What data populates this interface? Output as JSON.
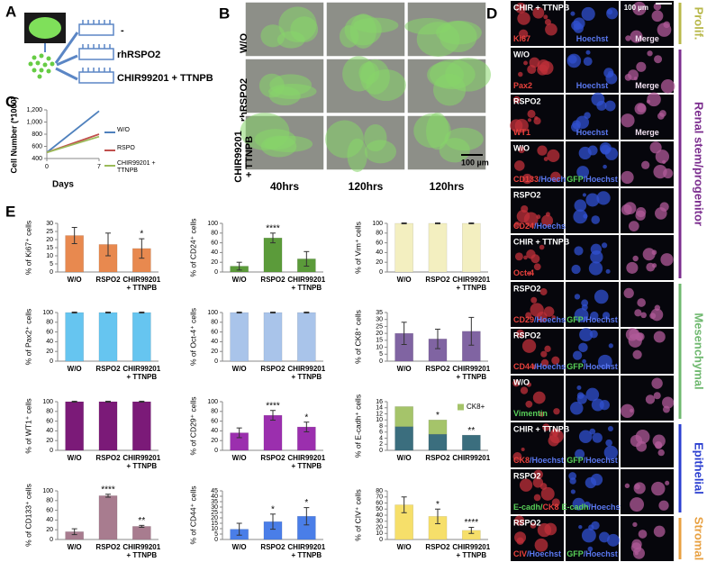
{
  "panels": {
    "a": "A",
    "b": "B",
    "c": "C",
    "d": "D",
    "e": "E"
  },
  "schematic": {
    "conditions": [
      "-",
      "rhRSPO2",
      "CHIR99201 + TTNPB"
    ]
  },
  "micrographs_b": {
    "rows": [
      "W/O",
      "rhRSPO2",
      "CHIR99201 + TTNPB"
    ],
    "columns": [
      "40hrs",
      "120hrs",
      "120hrs"
    ],
    "scale_bar": "100 µm"
  },
  "micrographs_d": {
    "scale_bar": "100 µm",
    "groups": [
      {
        "name": "Prolif.",
        "color": "#b8b84a",
        "rows": [
          {
            "condition": "CHIR + TTNPB",
            "labels": [
              [
                {
                  "text": "Ki67",
                  "color": "#e8413c"
                }
              ],
              [
                {
                  "text": "Hoechst",
                  "color": "#5a78f0"
                }
              ],
              [
                {
                  "text": "Merge",
                  "color": "#f0e0f0"
                }
              ]
            ]
          }
        ]
      },
      {
        "name": "Renal stem/progenitor",
        "color": "#7b2d8e",
        "rows": [
          {
            "condition": "W/O",
            "labels": [
              [
                {
                  "text": "Pax2",
                  "color": "#e8413c"
                }
              ],
              [
                {
                  "text": "Hoechst",
                  "color": "#5a78f0"
                }
              ],
              [
                {
                  "text": "Merge",
                  "color": "#f0e0f0"
                }
              ]
            ]
          },
          {
            "condition": "RSPO2",
            "labels": [
              [
                {
                  "text": "WT1",
                  "color": "#e8413c"
                }
              ],
              [
                {
                  "text": "Hoechst",
                  "color": "#5a78f0"
                }
              ],
              [
                {
                  "text": "Merge",
                  "color": "#f0e0f0"
                }
              ]
            ]
          },
          {
            "condition": "W/O",
            "labels": [
              [
                {
                  "text": "CD133",
                  "color": "#e8413c"
                },
                {
                  "text": "/Hoechst",
                  "color": "#5a78f0"
                }
              ],
              [
                {
                  "text": "GFP",
                  "color": "#58d058"
                },
                {
                  "text": "/Hoechst",
                  "color": "#5a78f0"
                }
              ],
              null
            ]
          },
          {
            "condition": "RSPO2",
            "labels": [
              [
                {
                  "text": "CD24",
                  "color": "#e8413c"
                },
                {
                  "text": "/Hoechst",
                  "color": "#5a78f0"
                }
              ],
              null,
              null
            ]
          },
          {
            "condition": "CHIR + TTNPB",
            "labels": [
              [
                {
                  "text": "Oct-4",
                  "color": "#e8413c"
                }
              ],
              null,
              null
            ]
          }
        ]
      },
      {
        "name": "Mesenchymal",
        "color": "#6fb86f",
        "rows": [
          {
            "condition": "RSPO2",
            "labels": [
              [
                {
                  "text": "CD29",
                  "color": "#e8413c"
                },
                {
                  "text": "/Hoechst",
                  "color": "#5a78f0"
                }
              ],
              [
                {
                  "text": "GFP",
                  "color": "#58d058"
                },
                {
                  "text": "/Hoechst",
                  "color": "#5a78f0"
                }
              ],
              null
            ]
          },
          {
            "condition": "RSPO2",
            "labels": [
              [
                {
                  "text": "CD44",
                  "color": "#e8413c"
                },
                {
                  "text": "/Hoechst",
                  "color": "#5a78f0"
                }
              ],
              [
                {
                  "text": "GFP",
                  "color": "#58d058"
                },
                {
                  "text": "/Hoechst",
                  "color": "#5a78f0"
                }
              ],
              null
            ]
          },
          {
            "condition": "W/O",
            "labels": [
              [
                {
                  "text": "Vimentin",
                  "color": "#58d058"
                }
              ],
              null,
              null
            ]
          }
        ]
      },
      {
        "name": "Epithelial",
        "color": "#2b3fd0",
        "rows": [
          {
            "condition": "CHIR + TTNPB",
            "labels": [
              [
                {
                  "text": "CK8",
                  "color": "#e8413c"
                },
                {
                  "text": "/Hoechst",
                  "color": "#5a78f0"
                }
              ],
              [
                {
                  "text": "GFP",
                  "color": "#58d058"
                },
                {
                  "text": "/Hoechst",
                  "color": "#5a78f0"
                }
              ],
              null
            ]
          },
          {
            "condition": "RSPO2",
            "labels": [
              [
                {
                  "text": "E-cadh/",
                  "color": "#58d058"
                },
                {
                  "text": "CK8",
                  "color": "#e8413c"
                }
              ],
              [
                {
                  "text": "E-cadh",
                  "color": "#58d058"
                },
                {
                  "text": "/Hoechst",
                  "color": "#5a78f0"
                }
              ],
              null
            ]
          }
        ]
      },
      {
        "name": "Stromal",
        "color": "#e8a040",
        "rows": [
          {
            "condition": "RSPO2",
            "labels": [
              [
                {
                  "text": "CIV",
                  "color": "#e8413c"
                },
                {
                  "text": "/Hoechst",
                  "color": "#5a78f0"
                }
              ],
              [
                {
                  "text": "GFP",
                  "color": "#58d058"
                },
                {
                  "text": "/Hoechst",
                  "color": "#5a78f0"
                }
              ],
              null
            ]
          }
        ]
      }
    ]
  },
  "chart_data": [
    {
      "type": "line",
      "ylabel": "Cell Number (*1000)",
      "xlabel": "Days",
      "x": [
        0,
        7
      ],
      "xlim": [
        0,
        7
      ],
      "xticks": [
        0,
        7
      ],
      "ylim": [
        400,
        1200
      ],
      "yticks": [
        400,
        600,
        800,
        {
          "value": 1000,
          "label": "1,000"
        },
        {
          "value": 1200,
          "label": "1,200"
        }
      ],
      "series": [
        {
          "name": "W/O",
          "color": "#4f81bd",
          "values": [
            500,
            1180
          ]
        },
        {
          "name": "RSPO",
          "color": "#c0504d",
          "values": [
            500,
            800
          ]
        },
        {
          "name": "CHIR99201 + TTNPB",
          "color": "#9bbb59",
          "values": [
            500,
            760
          ]
        }
      ]
    },
    {
      "type": "bar",
      "ylabel": "% of Ki67⁺ cells",
      "categories": [
        "W/O",
        "RSPO2",
        "CHIR99201 + TTNPB"
      ],
      "values": [
        22.5,
        17,
        14.5
      ],
      "errors": [
        5,
        7,
        6
      ],
      "annotations": [
        null,
        null,
        "*"
      ],
      "color": "#e8894f",
      "ylim": [
        0,
        30
      ],
      "yticks": [
        0,
        5,
        10,
        15,
        20,
        25,
        30
      ]
    },
    {
      "type": "bar",
      "ylabel": "% of CD24⁺ cells",
      "categories": [
        "W/O",
        "RSPO2",
        "CHIR99201 + TTNPB"
      ],
      "values": [
        12,
        70,
        27
      ],
      "errors": [
        8,
        10,
        15
      ],
      "annotations": [
        null,
        "****",
        null
      ],
      "color": "#5b9b3a",
      "ylim": [
        0,
        100
      ],
      "yticks": [
        0,
        20,
        40,
        60,
        80,
        100
      ]
    },
    {
      "type": "bar",
      "ylabel": "% of Vim⁺ cells",
      "categories": [
        "W/O",
        "RSPO2",
        "CHIR99201 + TTNPB"
      ],
      "values": [
        100,
        100,
        100
      ],
      "errors": [
        1,
        1,
        1
      ],
      "annotations": [
        null,
        null,
        null
      ],
      "color": "#f3efc0",
      "ylim": [
        0,
        100
      ],
      "yticks": [
        0,
        20,
        40,
        60,
        80,
        100
      ]
    },
    {
      "type": "bar",
      "ylabel": "% of Pax2⁺ cells",
      "categories": [
        "W/O",
        "RSPO2",
        "CHIR99201 + TTNPB"
      ],
      "values": [
        100,
        100,
        100
      ],
      "errors": [
        1,
        1,
        1
      ],
      "annotations": [
        null,
        null,
        null
      ],
      "color": "#66c5f0",
      "ylim": [
        0,
        100
      ],
      "yticks": [
        0,
        20,
        40,
        60,
        80,
        100
      ]
    },
    {
      "type": "bar",
      "ylabel": "% of Oct-4⁺ cells",
      "categories": [
        "W/O",
        "RSPO2",
        "CHIR99201 + TTNPB"
      ],
      "values": [
        100,
        100,
        100
      ],
      "errors": [
        1,
        1,
        1
      ],
      "annotations": [
        null,
        null,
        null
      ],
      "color": "#a9c4ea",
      "ylim": [
        0,
        100
      ],
      "yticks": [
        0,
        20,
        40,
        60,
        80,
        100
      ]
    },
    {
      "type": "bar",
      "ylabel": "% of CK8⁺ cells",
      "categories": [
        "W/O",
        "RSPO2",
        "CHIR99201 + TTNPB"
      ],
      "values": [
        20,
        16,
        21.5
      ],
      "errors": [
        8,
        7,
        10
      ],
      "annotations": [
        null,
        null,
        null
      ],
      "color": "#8064a2",
      "ylim": [
        0,
        35
      ],
      "yticks": [
        0,
        5,
        10,
        15,
        20,
        25,
        30,
        35
      ]
    },
    {
      "type": "bar",
      "ylabel": "% of WT1⁺ cells",
      "categories": [
        "W/O",
        "RSPO2",
        "CHIR99201 + TTNPB"
      ],
      "values": [
        100,
        100,
        100
      ],
      "errors": [
        1,
        1,
        1
      ],
      "annotations": [
        null,
        null,
        null
      ],
      "color": "#7b1a78",
      "ylim": [
        0,
        100
      ],
      "yticks": [
        0,
        20,
        40,
        60,
        80,
        100
      ]
    },
    {
      "type": "bar",
      "ylabel": "% of CD29⁺ cells",
      "categories": [
        "W/O",
        "RSPO2",
        "CHIR99201 + TTNPB"
      ],
      "values": [
        36,
        72,
        48
      ],
      "errors": [
        10,
        10,
        10
      ],
      "annotations": [
        null,
        "****",
        "*"
      ],
      "color": "#9b2fae",
      "ylim": [
        0,
        100
      ],
      "yticks": [
        0,
        20,
        40,
        60,
        80,
        100
      ]
    },
    {
      "type": "stacked_bar",
      "ylabel": "% of E-cadh⁺ cells",
      "categories": [
        "W/O",
        "RSPO2",
        "CHIR99201"
      ],
      "annotations": [
        null,
        "*",
        "**"
      ],
      "ylim": [
        0,
        16
      ],
      "yticks": [
        0,
        2,
        4,
        6,
        8,
        10,
        12,
        14,
        16
      ],
      "series": [
        {
          "color": "#3b6e7e",
          "values": [
            7.8,
            5.3,
            5
          ]
        },
        {
          "name": "CK8+",
          "color": "#a5c46a",
          "values": [
            6.6,
            4.7,
            0
          ]
        }
      ]
    },
    {
      "type": "bar",
      "ylabel": "% of CD133⁺ cells",
      "categories": [
        "W/O",
        "RSPO2",
        "CHIR99201 + TTNPB"
      ],
      "values": [
        16,
        90,
        27
      ],
      "errors": [
        6,
        3,
        2
      ],
      "annotations": [
        null,
        "****",
        "**"
      ],
      "color": "#a87c8f",
      "ylim": [
        0,
        100
      ],
      "yticks": [
        0,
        20,
        40,
        60,
        80,
        100
      ]
    },
    {
      "type": "bar",
      "ylabel": "% of CD44⁺ cells",
      "categories": [
        "W/O",
        "RSPO2",
        "CHIR99201 + TTNPB"
      ],
      "values": [
        9.5,
        16.5,
        21.5
      ],
      "errors": [
        5.5,
        7,
        8
      ],
      "annotations": [
        null,
        "*",
        "*"
      ],
      "color": "#4a7ee8",
      "ylim": [
        0,
        45
      ],
      "yticks": [
        0,
        5,
        10,
        15,
        20,
        25,
        30,
        35,
        40,
        45
      ]
    },
    {
      "type": "bar",
      "ylabel": "% of CIV⁺ cells",
      "categories": [
        "W/O",
        "RSPO2",
        "CHIR99201 + TTNPB"
      ],
      "values": [
        57,
        38,
        15
      ],
      "errors": [
        13,
        12,
        5
      ],
      "annotations": [
        null,
        "*",
        "****"
      ],
      "color": "#f6df6a",
      "ylim": [
        0,
        80
      ],
      "yticks": [
        0,
        10,
        20,
        30,
        40,
        50,
        60,
        70,
        80
      ]
    }
  ]
}
